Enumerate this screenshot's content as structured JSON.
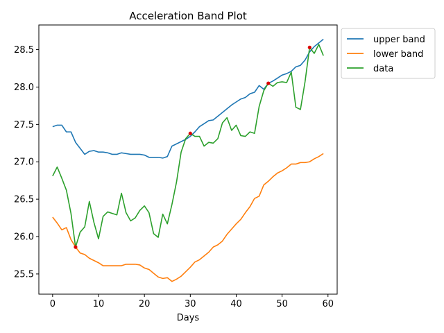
{
  "chart_data": {
    "type": "line",
    "title": "Acceleration Band Plot",
    "xlabel": "Days",
    "ylabel": "",
    "xlim": [
      -3,
      62
    ],
    "ylim": [
      25.23,
      28.83
    ],
    "xticks": [
      0,
      10,
      20,
      30,
      40,
      50,
      60
    ],
    "yticks": [
      25.5,
      26.0,
      26.5,
      27.0,
      27.5,
      28.0,
      28.5
    ],
    "ytick_labels": [
      "25.5",
      "26.0",
      "26.5",
      "27.0",
      "27.5",
      "28.0",
      "28.5"
    ],
    "legend_position": "outside upper right",
    "x": [
      0,
      1,
      2,
      3,
      4,
      5,
      6,
      7,
      8,
      9,
      10,
      11,
      12,
      13,
      14,
      15,
      16,
      17,
      18,
      19,
      20,
      21,
      22,
      23,
      24,
      25,
      26,
      27,
      28,
      29,
      30,
      31,
      32,
      33,
      34,
      35,
      36,
      37,
      38,
      39,
      40,
      41,
      42,
      43,
      44,
      45,
      46,
      47,
      48,
      49,
      50,
      51,
      52,
      53,
      54,
      55,
      56,
      57,
      58,
      59
    ],
    "series": [
      {
        "name": "upper band",
        "color": "#1f77b4",
        "values": [
          27.47,
          27.49,
          27.49,
          27.4,
          27.4,
          27.26,
          27.18,
          27.1,
          27.14,
          27.15,
          27.13,
          27.13,
          27.12,
          27.1,
          27.1,
          27.12,
          27.11,
          27.1,
          27.1,
          27.1,
          27.09,
          27.06,
          27.06,
          27.06,
          27.05,
          27.07,
          27.21,
          27.24,
          27.27,
          27.3,
          27.34,
          27.4,
          27.47,
          27.51,
          27.55,
          27.56,
          27.61,
          27.66,
          27.71,
          27.76,
          27.8,
          27.84,
          27.86,
          27.91,
          27.93,
          28.02,
          27.97,
          28.05,
          28.08,
          28.12,
          28.16,
          28.18,
          28.21,
          28.27,
          28.29,
          28.36,
          28.47,
          28.54,
          28.59,
          28.64
        ]
      },
      {
        "name": "lower band",
        "color": "#ff7f0e",
        "values": [
          26.26,
          26.18,
          26.09,
          26.12,
          25.96,
          25.86,
          25.78,
          25.76,
          25.71,
          25.68,
          25.65,
          25.61,
          25.61,
          25.61,
          25.61,
          25.61,
          25.63,
          25.63,
          25.63,
          25.62,
          25.58,
          25.56,
          25.51,
          25.46,
          25.44,
          25.45,
          25.4,
          25.43,
          25.47,
          25.53,
          25.59,
          25.66,
          25.69,
          25.74,
          25.79,
          25.86,
          25.89,
          25.94,
          26.03,
          26.1,
          26.17,
          26.23,
          26.32,
          26.4,
          26.51,
          26.54,
          26.69,
          26.74,
          26.8,
          26.85,
          26.88,
          26.92,
          26.97,
          26.97,
          26.99,
          26.99,
          27.0,
          27.04,
          27.07,
          27.11
        ]
      },
      {
        "name": "data",
        "color": "#2ca02c",
        "values": [
          26.81,
          26.93,
          26.78,
          26.62,
          26.31,
          25.86,
          26.06,
          26.13,
          26.47,
          26.19,
          25.97,
          26.27,
          26.33,
          26.31,
          26.29,
          26.58,
          26.32,
          26.21,
          26.25,
          26.35,
          26.41,
          26.32,
          26.04,
          25.99,
          26.3,
          26.17,
          26.43,
          26.73,
          27.13,
          27.31,
          27.38,
          27.34,
          27.34,
          27.21,
          27.26,
          27.25,
          27.31,
          27.52,
          27.59,
          27.42,
          27.49,
          27.35,
          27.34,
          27.4,
          27.38,
          27.74,
          27.95,
          28.05,
          28.01,
          28.06,
          28.07,
          28.06,
          28.2,
          27.73,
          27.7,
          28.07,
          28.53,
          28.45,
          28.57,
          28.42
        ]
      }
    ],
    "highlight_points": {
      "color": "#dd0000",
      "points": [
        {
          "x": 5,
          "y": 25.86
        },
        {
          "x": 30,
          "y": 27.38
        },
        {
          "x": 47,
          "y": 28.05
        },
        {
          "x": 56,
          "y": 28.53
        }
      ]
    }
  }
}
